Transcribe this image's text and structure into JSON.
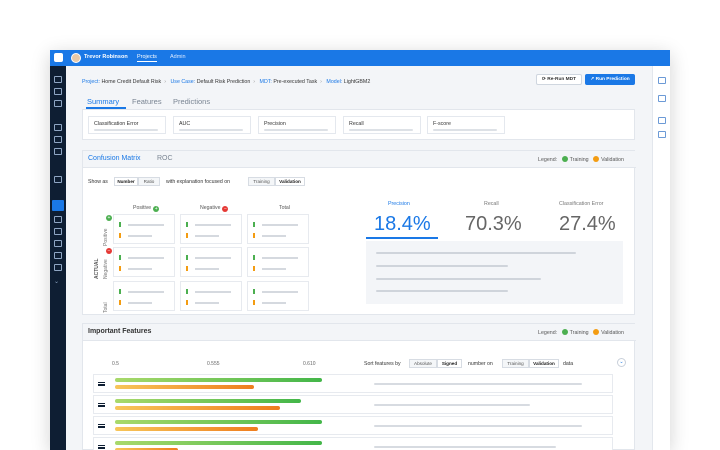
{
  "topbar": {
    "user_name": "Trevor Robinson",
    "nav": [
      "Projects",
      "Admin"
    ],
    "active_nav": "Projects"
  },
  "breadcrumb": [
    {
      "key": "Project:",
      "value": "Home Credit Default Risk"
    },
    {
      "key": "Use Case:",
      "value": "Default Risk Prediction"
    },
    {
      "key": "MDT:",
      "value": "Pre-executed Task"
    },
    {
      "key": "Model:",
      "value": "LightGBM2"
    }
  ],
  "actions": {
    "rerun": "Re-Run MDT",
    "run_prediction": "Run Prediction"
  },
  "main_tabs": [
    "Summary",
    "Features",
    "Predictions"
  ],
  "metrics": [
    "Classification Error",
    "AUC",
    "Precision",
    "Recall",
    "F-score"
  ],
  "cm_panel": {
    "tabs": [
      "Confusion Matrix",
      "ROC"
    ],
    "legend_label": "Legend:",
    "legend": [
      {
        "name": "Training",
        "color": "#4caf50"
      },
      {
        "name": "Validation",
        "color": "#f39c12"
      }
    ],
    "show_as": "Show as",
    "show_options": [
      "Number",
      "Ratio"
    ],
    "explain_text": "with explanation focused on",
    "focus_options": [
      "Training",
      "Validation"
    ],
    "columns": [
      "Positive",
      "Negative",
      "Total"
    ],
    "rows": [
      "Positive",
      "Negative",
      "Total"
    ],
    "actual_label": "ACTUAL",
    "stats": [
      {
        "label": "Precision",
        "value": "18.4%"
      },
      {
        "label": "Recall",
        "value": "70.3%"
      },
      {
        "label": "Classification Error",
        "value": "27.4%"
      }
    ]
  },
  "if_panel": {
    "title": "Important Features",
    "legend_label": "Legend:",
    "legend": [
      {
        "name": "Training",
        "color": "#4caf50"
      },
      {
        "name": "Validation",
        "color": "#f39c12"
      }
    ],
    "axis": [
      "0.5",
      "0.555",
      "0.610"
    ],
    "sort_label": "Sort features by",
    "sort_options": [
      "Absolute",
      "Signed"
    ],
    "number_on": "number on",
    "data_options": [
      "Training",
      "Validation"
    ],
    "data_label": "data",
    "features": [
      {
        "training": 0.98,
        "validation": 0.66
      },
      {
        "training": 0.88,
        "validation": 0.78
      },
      {
        "training": 0.98,
        "validation": 0.68
      },
      {
        "training": 0.98,
        "validation": 0.3
      }
    ]
  },
  "colors": {
    "accent": "#1a78e6",
    "sidebar": "#0e1e33",
    "training": "#4caf50",
    "validation": "#f39c12"
  }
}
